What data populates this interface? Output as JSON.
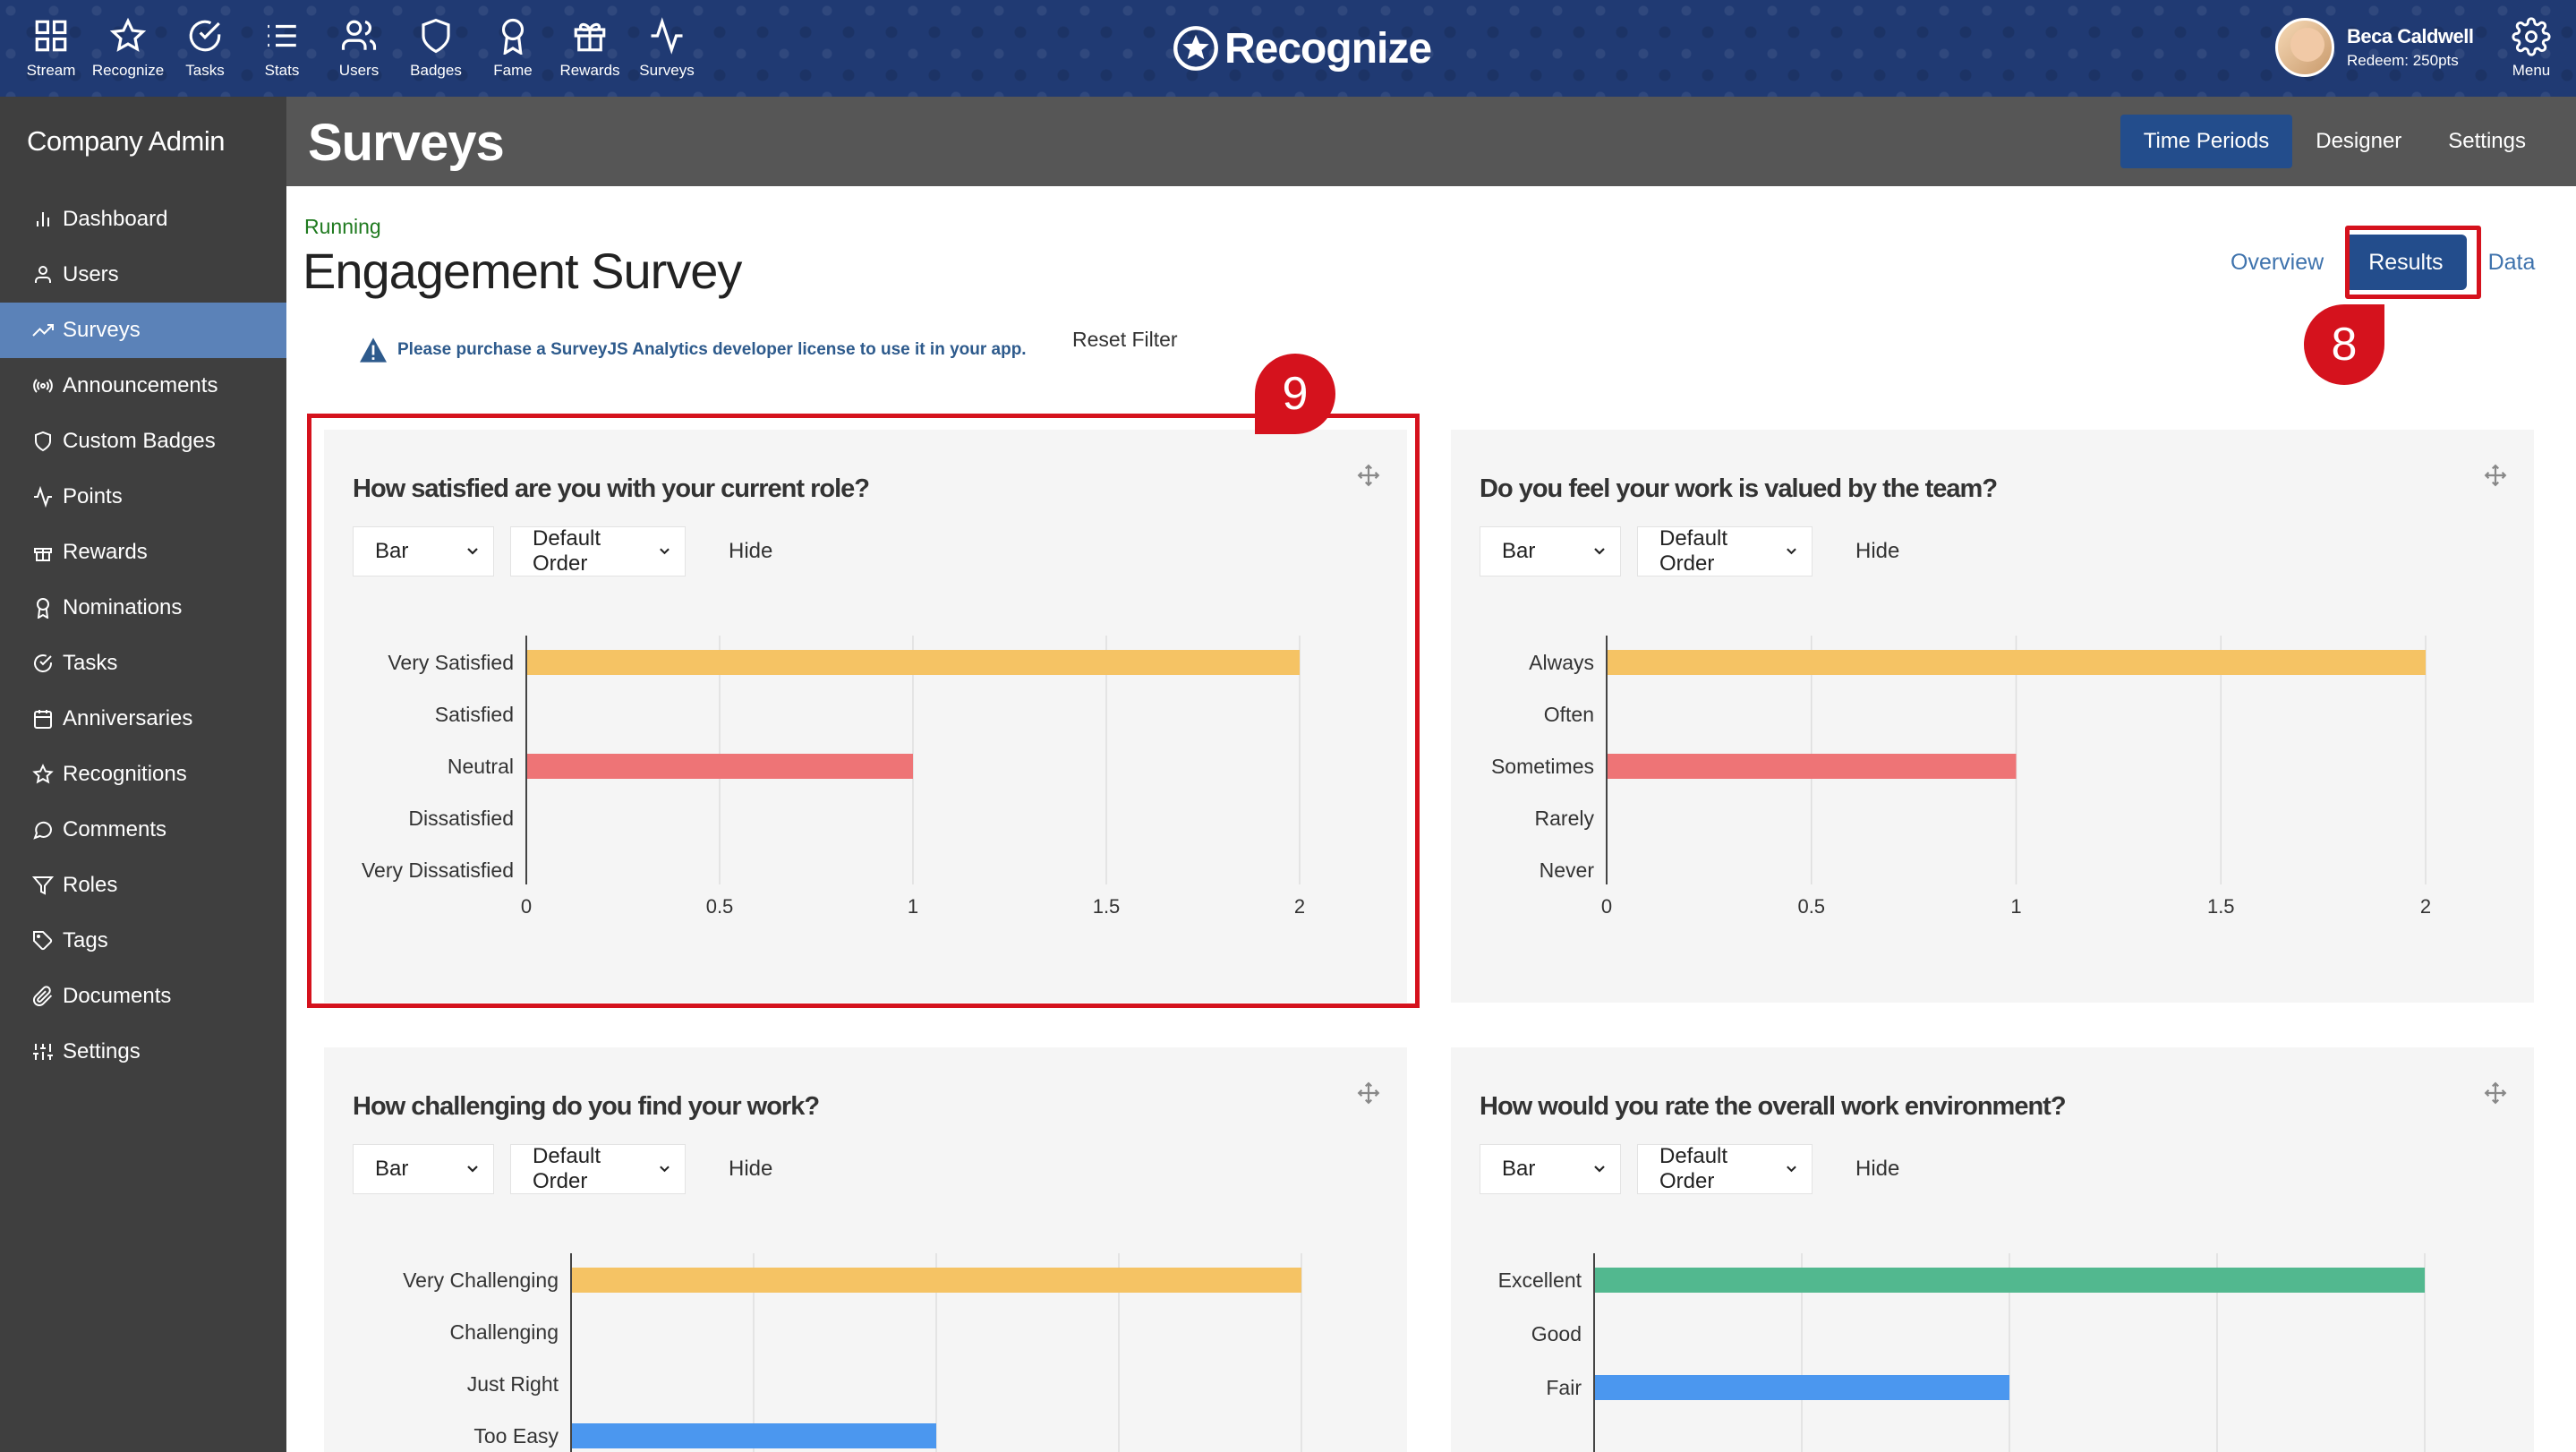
{
  "topnav": {
    "items": [
      {
        "label": "Stream",
        "icon": "grid-icon"
      },
      {
        "label": "Recognize",
        "icon": "star-icon"
      },
      {
        "label": "Tasks",
        "icon": "check-circle-icon"
      },
      {
        "label": "Stats",
        "icon": "list-icon"
      },
      {
        "label": "Users",
        "icon": "users-icon"
      },
      {
        "label": "Badges",
        "icon": "shield-icon"
      },
      {
        "label": "Fame",
        "icon": "award-icon"
      },
      {
        "label": "Rewards",
        "icon": "gift-icon"
      },
      {
        "label": "Surveys",
        "icon": "activity-icon"
      }
    ],
    "brand": "Recognize",
    "user_name": "Beca Caldwell",
    "redeem": "Redeem: 250pts",
    "menu_label": "Menu"
  },
  "sidebar": {
    "title": "Company Admin",
    "items": [
      {
        "label": "Dashboard",
        "icon": "bar-chart-icon"
      },
      {
        "label": "Users",
        "icon": "user-icon"
      },
      {
        "label": "Surveys",
        "icon": "trend-icon"
      },
      {
        "label": "Announcements",
        "icon": "broadcast-icon"
      },
      {
        "label": "Custom Badges",
        "icon": "shield-icon"
      },
      {
        "label": "Points",
        "icon": "activity-icon"
      },
      {
        "label": "Rewards",
        "icon": "gift-icon"
      },
      {
        "label": "Nominations",
        "icon": "award-icon"
      },
      {
        "label": "Tasks",
        "icon": "check-circle-icon"
      },
      {
        "label": "Anniversaries",
        "icon": "calendar-icon"
      },
      {
        "label": "Recognitions",
        "icon": "star-icon"
      },
      {
        "label": "Comments",
        "icon": "comment-icon"
      },
      {
        "label": "Roles",
        "icon": "filter-icon"
      },
      {
        "label": "Tags",
        "icon": "tag-icon"
      },
      {
        "label": "Documents",
        "icon": "paperclip-icon"
      },
      {
        "label": "Settings",
        "icon": "sliders-icon"
      }
    ],
    "active_index": 2
  },
  "header": {
    "title": "Surveys",
    "tabs": [
      "Time Periods",
      "Designer",
      "Settings"
    ],
    "active_tab": 0
  },
  "survey": {
    "status": "Running",
    "title": "Engagement Survey",
    "view_tabs": [
      "Overview",
      "Results",
      "Data"
    ],
    "warning": "Please purchase a SurveyJS Analytics developer license to use it in your app.",
    "reset_filter": "Reset Filter"
  },
  "callouts": [
    "8",
    "9"
  ],
  "controls": {
    "type": "Bar",
    "order": "Default Order",
    "hide": "Hide"
  },
  "colors": {
    "yellow": "#f5c364",
    "pink": "#ee7476",
    "green": "#52b88f",
    "blue": "#4b97ef",
    "accent": "#d5121d"
  },
  "chart_data": [
    {
      "type": "bar",
      "title": "How satisfied are you with your current role?",
      "categories": [
        "Very Satisfied",
        "Satisfied",
        "Neutral",
        "Dissatisfied",
        "Very Dissatisfied"
      ],
      "values": [
        2,
        0,
        1,
        0,
        0
      ],
      "colors": [
        "#f5c364",
        "#f5c364",
        "#ee7476",
        "#ee7476",
        "#ee7476"
      ],
      "xlim": [
        0,
        2
      ],
      "xticks": [
        "0",
        "0.5",
        "1",
        "1.5",
        "2"
      ]
    },
    {
      "type": "bar",
      "title": "Do you feel your work is valued by the team?",
      "categories": [
        "Always",
        "Often",
        "Sometimes",
        "Rarely",
        "Never"
      ],
      "values": [
        2,
        0,
        1,
        0,
        0
      ],
      "colors": [
        "#f5c364",
        "#f5c364",
        "#ee7476",
        "#ee7476",
        "#ee7476"
      ],
      "xlim": [
        0,
        2
      ],
      "xticks": [
        "0",
        "0.5",
        "1",
        "1.5",
        "2"
      ]
    },
    {
      "type": "bar",
      "title": "How challenging do you find your work?",
      "categories": [
        "Very Challenging",
        "Challenging",
        "Just Right",
        "Too Easy"
      ],
      "values": [
        2,
        0,
        0,
        1
      ],
      "colors": [
        "#f5c364",
        "#f5c364",
        "#4b97ef",
        "#4b97ef"
      ],
      "xlim": [
        0,
        2
      ],
      "xticks": []
    },
    {
      "type": "bar",
      "title": "How would you rate the overall work environment?",
      "categories": [
        "Excellent",
        "Good",
        "Fair"
      ],
      "values": [
        2,
        0,
        1
      ],
      "colors": [
        "#52b88f",
        "#52b88f",
        "#4b97ef"
      ],
      "xlim": [
        0,
        2
      ],
      "xticks": []
    }
  ]
}
